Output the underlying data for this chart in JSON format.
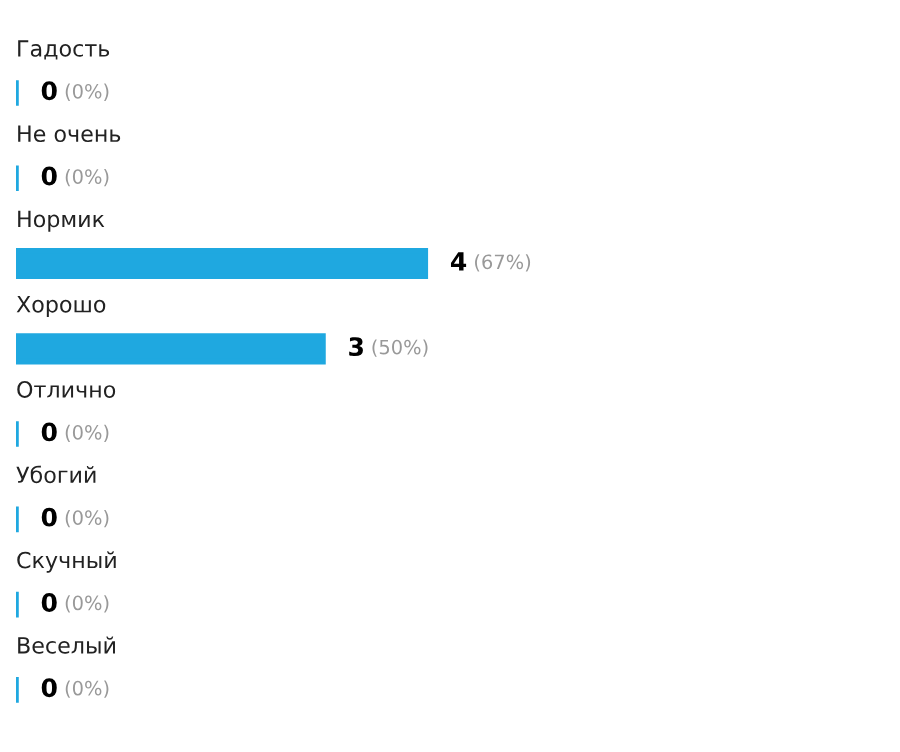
{
  "chart_data": {
    "type": "bar",
    "orientation": "horizontal",
    "categories": [
      "Гадость",
      "Не очень",
      "Нормик",
      "Хорошо",
      "Отлично",
      "Убогий",
      "Скучный",
      "Веселый"
    ],
    "values": [
      0,
      0,
      4,
      3,
      0,
      0,
      0,
      0
    ],
    "value_labels": [
      "0 (0%)",
      "0 (0%)",
      "4 (67%)",
      "3 (50%)",
      "0 (0%)",
      "0 (0%)",
      "0 (0%)",
      "0 (0%)"
    ],
    "color": "#1fa8e0"
  }
}
